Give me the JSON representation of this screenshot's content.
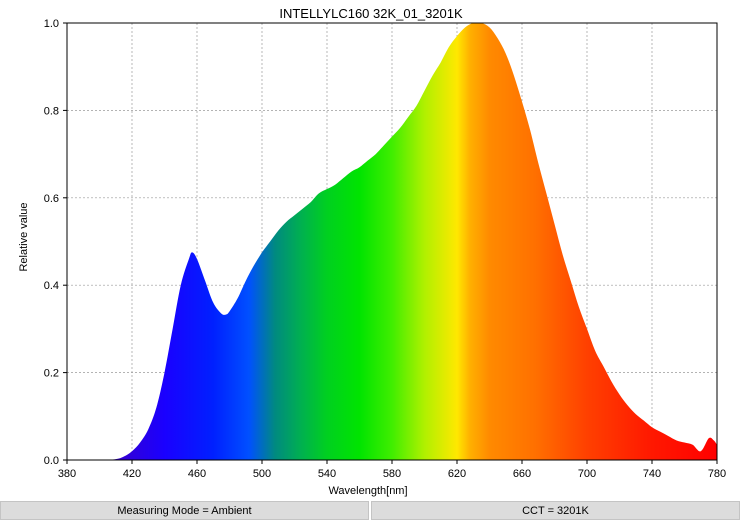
{
  "chart_data": {
    "type": "area",
    "title": "INTELLYLC160 32K_01_3201K",
    "xlabel": "Wavelength[nm]",
    "ylabel": "Relative value",
    "xlim": [
      380,
      780
    ],
    "ylim": [
      0,
      1.0
    ],
    "x_ticks": [
      "380",
      "420",
      "460",
      "500",
      "540",
      "580",
      "620",
      "660",
      "700",
      "740",
      "780"
    ],
    "y_ticks": [
      "0.0",
      "0.2",
      "0.4",
      "0.6",
      "0.8",
      "1.0"
    ],
    "grid": true,
    "fill": "visible-spectrum colors",
    "x": [
      380,
      400,
      410,
      415,
      420,
      425,
      430,
      435,
      440,
      445,
      450,
      455,
      457,
      460,
      465,
      470,
      475,
      478,
      480,
      485,
      490,
      495,
      500,
      505,
      510,
      515,
      520,
      525,
      530,
      535,
      540,
      545,
      550,
      555,
      560,
      565,
      570,
      575,
      580,
      585,
      590,
      595,
      600,
      605,
      610,
      615,
      620,
      625,
      630,
      635,
      640,
      645,
      650,
      655,
      660,
      665,
      670,
      675,
      680,
      685,
      690,
      695,
      700,
      705,
      710,
      715,
      720,
      725,
      730,
      735,
      740,
      745,
      750,
      755,
      760,
      765,
      770,
      775,
      778,
      780
    ],
    "values": [
      0.0,
      0.0,
      0.002,
      0.008,
      0.02,
      0.04,
      0.07,
      0.12,
      0.2,
      0.3,
      0.4,
      0.46,
      0.475,
      0.46,
      0.41,
      0.36,
      0.335,
      0.333,
      0.34,
      0.37,
      0.41,
      0.445,
      0.475,
      0.5,
      0.525,
      0.545,
      0.56,
      0.575,
      0.59,
      0.61,
      0.62,
      0.63,
      0.645,
      0.66,
      0.67,
      0.685,
      0.7,
      0.72,
      0.74,
      0.76,
      0.785,
      0.81,
      0.845,
      0.88,
      0.91,
      0.945,
      0.97,
      0.99,
      1.0,
      1.0,
      0.99,
      0.965,
      0.93,
      0.88,
      0.82,
      0.755,
      0.68,
      0.61,
      0.54,
      0.47,
      0.41,
      0.35,
      0.3,
      0.25,
      0.215,
      0.18,
      0.15,
      0.125,
      0.105,
      0.09,
      0.075,
      0.065,
      0.055,
      0.045,
      0.04,
      0.035,
      0.02,
      0.05,
      0.045,
      0.035
    ]
  },
  "footer": {
    "measuring_mode": "Measuring Mode = Ambient",
    "cct": "CCT = 3201K"
  }
}
